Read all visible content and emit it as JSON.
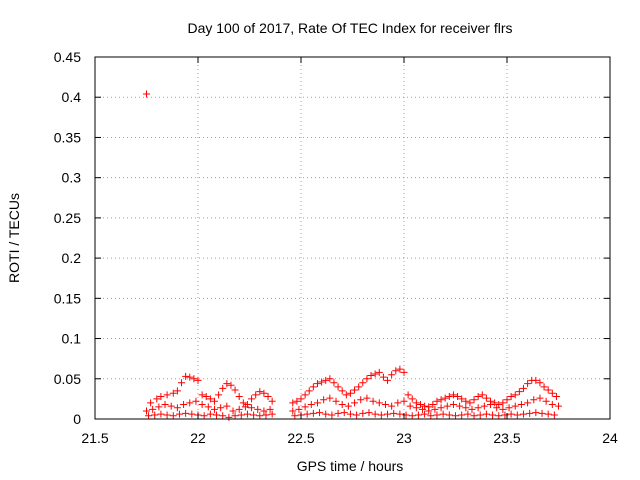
{
  "chart_data": {
    "type": "scatter",
    "title": "Day 100 of 2017, Rate Of TEC Index for receiver flrs",
    "xlabel": "GPS time / hours",
    "ylabel": "ROTI / TECUs",
    "xlim": [
      21.5,
      24
    ],
    "ylim": [
      0,
      0.45
    ],
    "xticks": [
      "21.5",
      "22",
      "22.5",
      "23",
      "23.5",
      "24"
    ],
    "yticks": [
      "0",
      "0.05",
      "0.1",
      "0.15",
      "0.2",
      "0.25",
      "0.3",
      "0.35",
      "0.4",
      "0.45"
    ],
    "grid": true,
    "marker": "+",
    "color": "#ff0000",
    "series": [
      {
        "x": [
          21.75,
          21.77,
          21.8,
          21.82,
          21.85,
          21.88,
          21.9,
          21.92,
          21.94,
          21.96,
          21.98,
          22.0,
          22.02,
          22.04,
          22.06,
          22.08,
          22.1,
          22.12,
          22.14,
          22.16,
          22.18,
          22.2,
          22.22,
          22.24,
          22.26,
          22.28,
          22.3,
          22.32,
          22.34,
          22.36,
          22.46,
          22.48,
          22.5,
          22.52,
          22.54,
          22.56,
          22.58,
          22.6,
          22.62,
          22.64,
          22.66,
          22.68,
          22.7,
          22.72,
          22.74,
          22.76,
          22.78,
          22.8,
          22.82,
          22.84,
          22.86,
          22.88,
          22.9,
          22.92,
          22.94,
          22.96,
          22.98,
          23.0,
          23.02,
          23.04,
          23.06,
          23.08,
          23.1,
          23.12,
          23.14,
          23.16,
          23.18,
          23.2,
          23.22,
          23.24,
          23.26,
          23.28,
          23.3,
          23.32,
          23.34,
          23.36,
          23.38,
          23.4,
          23.42,
          23.44,
          23.46,
          23.48,
          23.5,
          23.52,
          23.54,
          23.56,
          23.58,
          23.6,
          23.62,
          23.64,
          23.66,
          23.68,
          23.7,
          23.72,
          23.74
        ],
        "y": [
          0.404,
          0.02,
          0.025,
          0.028,
          0.03,
          0.032,
          0.035,
          0.045,
          0.053,
          0.052,
          0.05,
          0.048,
          0.03,
          0.028,
          0.025,
          0.022,
          0.03,
          0.038,
          0.044,
          0.042,
          0.036,
          0.028,
          0.02,
          0.018,
          0.025,
          0.03,
          0.034,
          0.032,
          0.028,
          0.022,
          0.02,
          0.022,
          0.025,
          0.03,
          0.035,
          0.04,
          0.044,
          0.046,
          0.048,
          0.05,
          0.045,
          0.04,
          0.035,
          0.03,
          0.032,
          0.036,
          0.04,
          0.045,
          0.05,
          0.054,
          0.056,
          0.058,
          0.052,
          0.048,
          0.055,
          0.06,
          0.062,
          0.058,
          0.03,
          0.025,
          0.02,
          0.018,
          0.016,
          0.015,
          0.018,
          0.022,
          0.024,
          0.026,
          0.028,
          0.03,
          0.028,
          0.025,
          0.022,
          0.02,
          0.024,
          0.028,
          0.03,
          0.026,
          0.022,
          0.02,
          0.018,
          0.02,
          0.024,
          0.028,
          0.03,
          0.034,
          0.038,
          0.044,
          0.048,
          0.048,
          0.045,
          0.04,
          0.036,
          0.032,
          0.028
        ]
      },
      {
        "x": [
          21.75,
          21.78,
          21.81,
          21.84,
          21.87,
          21.9,
          21.93,
          21.96,
          21.99,
          22.02,
          22.05,
          22.08,
          22.11,
          22.14,
          22.17,
          22.2,
          22.23,
          22.26,
          22.29,
          22.32,
          22.35,
          22.46,
          22.49,
          22.52,
          22.55,
          22.58,
          22.61,
          22.64,
          22.67,
          22.7,
          22.73,
          22.76,
          22.79,
          22.82,
          22.85,
          22.88,
          22.91,
          22.94,
          22.97,
          23.0,
          23.03,
          23.06,
          23.09,
          23.12,
          23.15,
          23.18,
          23.21,
          23.24,
          23.27,
          23.3,
          23.33,
          23.36,
          23.39,
          23.42,
          23.45,
          23.48,
          23.51,
          23.54,
          23.57,
          23.6,
          23.63,
          23.66,
          23.69,
          23.72,
          23.75
        ],
        "y": [
          0.01,
          0.012,
          0.015,
          0.018,
          0.016,
          0.014,
          0.018,
          0.02,
          0.022,
          0.018,
          0.015,
          0.012,
          0.014,
          0.016,
          0.01,
          0.012,
          0.015,
          0.014,
          0.012,
          0.01,
          0.012,
          0.01,
          0.012,
          0.015,
          0.018,
          0.02,
          0.024,
          0.026,
          0.022,
          0.018,
          0.016,
          0.02,
          0.024,
          0.026,
          0.022,
          0.02,
          0.018,
          0.016,
          0.02,
          0.022,
          0.016,
          0.014,
          0.012,
          0.01,
          0.012,
          0.014,
          0.016,
          0.018,
          0.016,
          0.014,
          0.012,
          0.014,
          0.016,
          0.018,
          0.014,
          0.012,
          0.014,
          0.016,
          0.018,
          0.02,
          0.024,
          0.026,
          0.022,
          0.018,
          0.016
        ]
      },
      {
        "x": [
          21.76,
          21.79,
          21.82,
          21.85,
          21.88,
          21.91,
          21.94,
          21.97,
          22.0,
          22.03,
          22.06,
          22.09,
          22.12,
          22.15,
          22.18,
          22.21,
          22.24,
          22.27,
          22.3,
          22.33,
          22.36,
          22.47,
          22.5,
          22.53,
          22.56,
          22.59,
          22.62,
          22.65,
          22.68,
          22.71,
          22.74,
          22.77,
          22.8,
          22.83,
          22.86,
          22.89,
          22.92,
          22.95,
          22.98,
          23.01,
          23.04,
          23.07,
          23.1,
          23.13,
          23.16,
          23.19,
          23.22,
          23.25,
          23.28,
          23.31,
          23.34,
          23.37,
          23.4,
          23.43,
          23.46,
          23.49,
          23.52,
          23.55,
          23.58,
          23.61,
          23.64,
          23.67,
          23.7,
          23.73
        ],
        "y": [
          0.004,
          0.005,
          0.006,
          0.005,
          0.004,
          0.006,
          0.007,
          0.006,
          0.005,
          0.004,
          0.006,
          0.005,
          0.004,
          0.002,
          0.004,
          0.005,
          0.006,
          0.005,
          0.004,
          0.005,
          0.006,
          0.004,
          0.005,
          0.006,
          0.007,
          0.008,
          0.006,
          0.005,
          0.007,
          0.008,
          0.006,
          0.005,
          0.007,
          0.008,
          0.006,
          0.005,
          0.006,
          0.007,
          0.006,
          0.005,
          0.004,
          0.005,
          0.006,
          0.004,
          0.005,
          0.006,
          0.005,
          0.004,
          0.005,
          0.006,
          0.004,
          0.005,
          0.006,
          0.005,
          0.004,
          0.005,
          0.006,
          0.005,
          0.006,
          0.007,
          0.008,
          0.007,
          0.006,
          0.005
        ]
      }
    ]
  }
}
